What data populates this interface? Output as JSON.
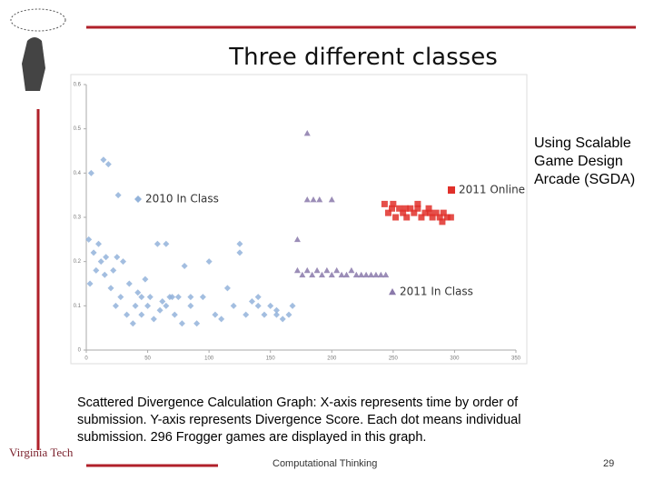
{
  "slide": {
    "title": "Three different classes",
    "side_text": "Using Scalable Game Design Arcade (SGDA)",
    "caption": "Scattered Divergence Calculation Graph: X-axis represents time by order of submission. Y-axis represents Divergence Score. Each dot means individual submission. 296 Frogger games are displayed in this graph.",
    "footer": "Computational Thinking",
    "page_number": 29,
    "logo": "Virginia Tech"
  },
  "chart_data": {
    "type": "scatter",
    "xlim": [
      0,
      350
    ],
    "xticks": [
      0,
      50,
      100,
      150,
      200,
      250,
      300,
      350
    ],
    "ylim": [
      0,
      0.6
    ],
    "yticks": [
      0,
      0.1,
      0.2,
      0.3,
      0.4,
      0.5,
      0.6
    ],
    "series": [
      {
        "name": "2010 In Class",
        "color": "#93b3da",
        "marker": "diamond",
        "x": [
          2,
          4,
          6,
          8,
          10,
          12,
          14,
          16,
          18,
          20,
          22,
          24,
          26,
          28,
          30,
          33,
          35,
          38,
          40,
          42,
          45,
          48,
          50,
          52,
          55,
          58,
          60,
          62,
          65,
          68,
          70,
          72,
          75,
          78,
          80,
          85,
          90,
          95,
          100,
          105,
          110,
          115,
          120,
          125,
          130,
          135,
          140,
          145,
          150,
          155,
          160,
          165,
          168,
          3,
          15,
          25,
          45,
          65,
          85,
          125,
          140,
          155
        ],
        "values": [
          0.25,
          0.4,
          0.22,
          0.18,
          0.24,
          0.2,
          0.43,
          0.21,
          0.42,
          0.14,
          0.18,
          0.1,
          0.35,
          0.12,
          0.2,
          0.08,
          0.15,
          0.06,
          0.1,
          0.13,
          0.08,
          0.16,
          0.1,
          0.12,
          0.07,
          0.24,
          0.09,
          0.11,
          0.24,
          0.12,
          0.12,
          0.08,
          0.12,
          0.06,
          0.19,
          0.1,
          0.06,
          0.12,
          0.2,
          0.08,
          0.07,
          0.14,
          0.1,
          0.24,
          0.08,
          0.11,
          0.1,
          0.08,
          0.1,
          0.08,
          0.07,
          0.08,
          0.1,
          0.15,
          0.17,
          0.21,
          0.12,
          0.1,
          0.12,
          0.22,
          0.12,
          0.09
        ]
      },
      {
        "name": "2011 Online",
        "color": "#e0302a",
        "marker": "square",
        "x": [
          243,
          246,
          249,
          252,
          255,
          258,
          261,
          264,
          267,
          270,
          273,
          276,
          279,
          282,
          285,
          288,
          291,
          294,
          297,
          250,
          260,
          270,
          280,
          290
        ],
        "values": [
          0.33,
          0.31,
          0.32,
          0.3,
          0.32,
          0.31,
          0.3,
          0.32,
          0.31,
          0.32,
          0.3,
          0.31,
          0.32,
          0.3,
          0.31,
          0.3,
          0.31,
          0.3,
          0.3,
          0.33,
          0.32,
          0.33,
          0.31,
          0.29
        ]
      },
      {
        "name": "2011 In Class",
        "color": "#8a79aa",
        "marker": "triangle",
        "x": [
          172,
          176,
          180,
          184,
          188,
          192,
          196,
          200,
          204,
          208,
          212,
          216,
          220,
          224,
          228,
          232,
          236,
          240,
          244,
          172,
          180,
          180,
          185,
          190,
          200
        ],
        "values": [
          0.18,
          0.17,
          0.18,
          0.17,
          0.18,
          0.17,
          0.18,
          0.17,
          0.18,
          0.17,
          0.17,
          0.18,
          0.17,
          0.17,
          0.17,
          0.17,
          0.17,
          0.17,
          0.17,
          0.25,
          0.49,
          0.34,
          0.34,
          0.34,
          0.34
        ]
      }
    ]
  }
}
